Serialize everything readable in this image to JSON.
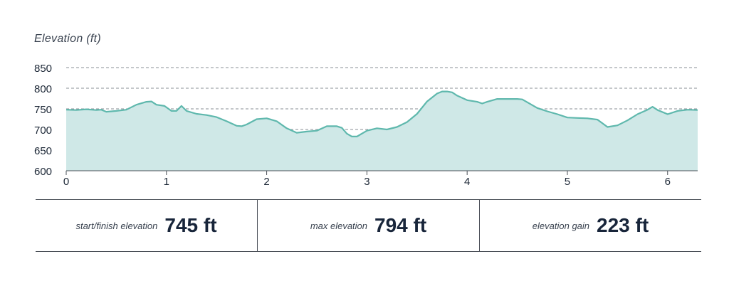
{
  "chart_data": {
    "type": "area",
    "ylabel": "Elevation (ft)",
    "xlabel": "",
    "ylim": [
      600,
      850
    ],
    "xlim": [
      0,
      6.3
    ],
    "yticks": [
      600,
      650,
      700,
      750,
      800,
      850
    ],
    "xticks": [
      0,
      1,
      2,
      3,
      4,
      5,
      6
    ],
    "grid": "horizontal dashed",
    "colors": {
      "line": "#5fb8ad",
      "fill": "#cfe8e7",
      "grid": "#8a8f96"
    },
    "x": [
      0,
      0.1,
      0.2,
      0.3,
      0.35,
      0.4,
      0.5,
      0.6,
      0.7,
      0.8,
      0.85,
      0.9,
      0.98,
      1.05,
      1.1,
      1.15,
      1.2,
      1.3,
      1.4,
      1.5,
      1.6,
      1.7,
      1.75,
      1.8,
      1.9,
      2.0,
      2.1,
      2.2,
      2.3,
      2.4,
      2.5,
      2.6,
      2.7,
      2.75,
      2.8,
      2.85,
      2.9,
      3.0,
      3.1,
      3.2,
      3.3,
      3.4,
      3.5,
      3.6,
      3.7,
      3.75,
      3.8,
      3.85,
      3.9,
      4.0,
      4.1,
      4.15,
      4.2,
      4.3,
      4.4,
      4.5,
      4.55,
      4.7,
      4.8,
      4.9,
      5.0,
      5.1,
      5.2,
      5.3,
      5.35,
      5.4,
      5.5,
      5.6,
      5.7,
      5.8,
      5.85,
      5.9,
      6.0,
      6.1,
      6.2,
      6.3
    ],
    "y": [
      748,
      747,
      749,
      747,
      748,
      743,
      745,
      748,
      760,
      767,
      768,
      760,
      757,
      745,
      745,
      757,
      745,
      738,
      735,
      730,
      720,
      709,
      708,
      712,
      725,
      727,
      720,
      703,
      692,
      695,
      697,
      708,
      708,
      704,
      690,
      683,
      683,
      697,
      703,
      700,
      706,
      718,
      738,
      768,
      787,
      792,
      792,
      790,
      782,
      771,
      767,
      763,
      767,
      774,
      774,
      774,
      773,
      752,
      744,
      737,
      729,
      728,
      727,
      724,
      715,
      706,
      710,
      722,
      737,
      748,
      755,
      747,
      737,
      745,
      748,
      747
    ]
  },
  "stats": [
    {
      "label": "start/finish elevation",
      "value": "745 ft"
    },
    {
      "label": "max elevation",
      "value": "794 ft"
    },
    {
      "label": "elevation gain",
      "value": "223 ft"
    }
  ]
}
